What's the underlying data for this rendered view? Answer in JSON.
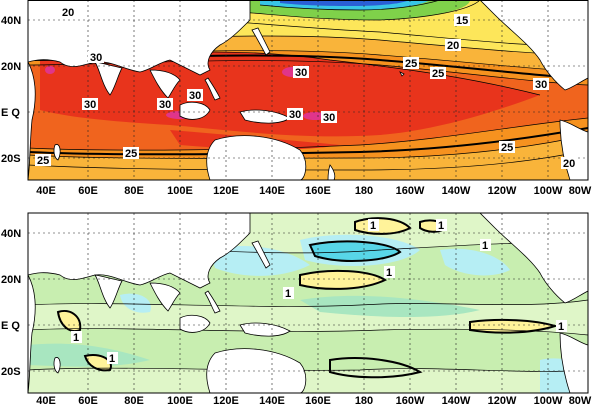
{
  "panels": [
    {
      "id": "top",
      "description_key": "mean",
      "lat_ticks": [
        "40N",
        "20N",
        "E Q",
        "20S"
      ],
      "lon_ticks": [
        "40E",
        "60E",
        "80E",
        "100E",
        "120E",
        "140E",
        "160E",
        "180",
        "160W",
        "140W",
        "120W",
        "100W",
        "80W"
      ],
      "contour_labels": [
        "20",
        "15",
        "20",
        "25",
        "25",
        "30",
        "30",
        "30",
        "30",
        "30",
        "30",
        "30",
        "30",
        "25",
        "25",
        "25",
        "20"
      ],
      "colors": {
        "hot": "#e8341c",
        "warm": "#f0641e",
        "orange": "#f6921f",
        "light_orange": "#f9b43a",
        "yellow": "#fde65a",
        "pale_yellow": "#fff5a0",
        "green": "#7fd14a",
        "cyan": "#38c6e6",
        "blue": "#2a5fd6",
        "magenta": "#e0358a"
      }
    },
    {
      "id": "bottom",
      "description_key": "anomaly",
      "lat_ticks": [
        "40N",
        "20N",
        "E Q",
        "20S"
      ],
      "lon_ticks": [
        "40E",
        "60E",
        "80E",
        "100E",
        "120E",
        "140E",
        "160E",
        "180",
        "160W",
        "140W",
        "120W",
        "100W",
        "80W"
      ],
      "contour_labels": [
        "1",
        "1",
        "1",
        "1",
        "1",
        "1",
        "1",
        "1"
      ],
      "colors": {
        "light_green": "#c8eeb0",
        "pale_green": "#dff6c8",
        "mint": "#a8e6c0",
        "cyan": "#58d6e8",
        "pale_cyan": "#b6eef4",
        "yellow": "#fff39a"
      }
    }
  ]
}
